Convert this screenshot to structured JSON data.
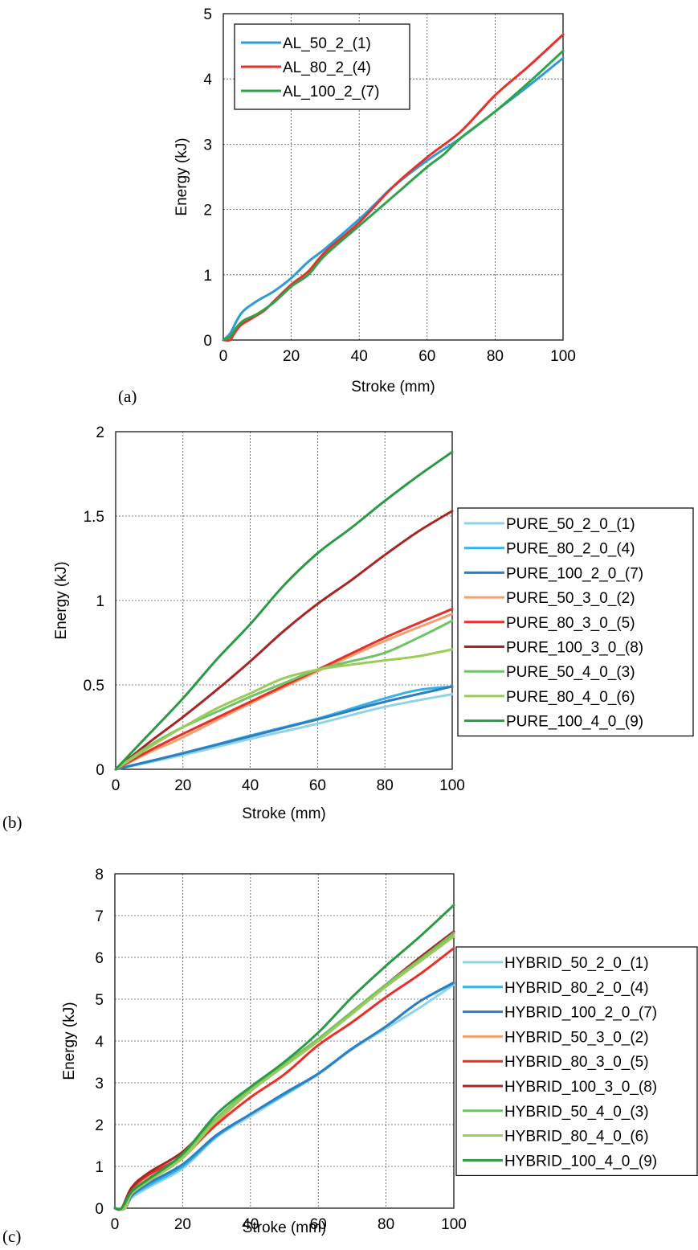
{
  "chart_data": [
    {
      "panel": "(a)",
      "type": "line",
      "xlabel": "Stroke (mm)",
      "ylabel": "Energy (kJ)",
      "xlim": [
        0,
        100
      ],
      "ylim": [
        0,
        5
      ],
      "xticks": [
        0,
        20,
        40,
        60,
        80,
        100
      ],
      "yticks": [
        0,
        1,
        2,
        3,
        4,
        5
      ],
      "grid": true,
      "legend": "inside-top-left",
      "series": [
        {
          "name": "AL_50_2_(1)",
          "color": "#2e9bd6",
          "x": [
            0,
            2,
            4,
            6,
            10,
            15,
            20,
            25,
            30,
            40,
            45,
            50,
            60,
            70,
            80,
            90,
            100
          ],
          "y": [
            0,
            0.1,
            0.3,
            0.45,
            0.6,
            0.75,
            0.95,
            1.2,
            1.4,
            1.85,
            2.1,
            2.35,
            2.75,
            3.1,
            3.5,
            3.9,
            4.32
          ]
        },
        {
          "name": "AL_80_2_(4)",
          "color": "#e8302a",
          "x": [
            0,
            2,
            3,
            5,
            8,
            12,
            15,
            20,
            25,
            30,
            40,
            50,
            60,
            70,
            80,
            90,
            100
          ],
          "y": [
            0,
            0,
            0.08,
            0.22,
            0.32,
            0.45,
            0.6,
            0.85,
            1.05,
            1.35,
            1.8,
            2.35,
            2.8,
            3.2,
            3.75,
            4.2,
            4.68
          ]
        },
        {
          "name": "AL_100_2_(7)",
          "color": "#2fa24a",
          "x": [
            0,
            2,
            4,
            6,
            10,
            15,
            20,
            25,
            30,
            40,
            50,
            60,
            65,
            70,
            80,
            90,
            100
          ],
          "y": [
            0,
            0.05,
            0.2,
            0.3,
            0.4,
            0.58,
            0.82,
            1.0,
            1.3,
            1.75,
            2.2,
            2.65,
            2.85,
            3.1,
            3.5,
            3.95,
            4.43
          ]
        }
      ]
    },
    {
      "panel": "(b)",
      "type": "line",
      "xlabel": "Stroke (mm)",
      "ylabel": "Energy (kJ)",
      "xlim": [
        0,
        100
      ],
      "ylim": [
        0,
        2
      ],
      "xticks": [
        0,
        20,
        40,
        60,
        80,
        100
      ],
      "yticks": [
        0,
        0.5,
        1,
        1.5,
        2
      ],
      "grid": true,
      "legend": "right",
      "series": [
        {
          "name": "PURE_50_2_0_(1)",
          "color": "#8fd3e8",
          "x": [
            0,
            20,
            40,
            60,
            80,
            100
          ],
          "y": [
            0,
            0.085,
            0.18,
            0.27,
            0.37,
            0.445
          ]
        },
        {
          "name": "PURE_80_2_0_(4)",
          "color": "#35b3e8",
          "x": [
            0,
            20,
            40,
            60,
            80,
            90,
            100
          ],
          "y": [
            0,
            0.095,
            0.2,
            0.3,
            0.42,
            0.47,
            0.49
          ]
        },
        {
          "name": "PURE_100_2_0_(7)",
          "color": "#2e7fc2",
          "x": [
            0,
            20,
            40,
            60,
            80,
            100
          ],
          "y": [
            0,
            0.095,
            0.195,
            0.295,
            0.4,
            0.49
          ]
        },
        {
          "name": "PURE_50_3_0_(2)",
          "color": "#f2a070",
          "x": [
            0,
            10,
            20,
            40,
            60,
            80,
            100
          ],
          "y": [
            0,
            0.1,
            0.19,
            0.39,
            0.58,
            0.76,
            0.92
          ]
        },
        {
          "name": "PURE_80_3_0_(5)",
          "color": "#e8302a",
          "x": [
            0,
            10,
            20,
            40,
            60,
            80,
            100
          ],
          "y": [
            0,
            0.11,
            0.21,
            0.4,
            0.59,
            0.78,
            0.95
          ]
        },
        {
          "name": "PURE_100_3_0_(8)",
          "color": "#a62525",
          "x": [
            0,
            10,
            20,
            30,
            40,
            50,
            60,
            70,
            80,
            90,
            100
          ],
          "y": [
            0,
            0.16,
            0.31,
            0.47,
            0.64,
            0.82,
            0.98,
            1.12,
            1.27,
            1.41,
            1.53
          ]
        },
        {
          "name": "PURE_50_4_0_(3)",
          "color": "#6fc466",
          "x": [
            0,
            10,
            20,
            30,
            40,
            50,
            60,
            70,
            80,
            90,
            100
          ],
          "y": [
            0,
            0.14,
            0.25,
            0.34,
            0.43,
            0.51,
            0.59,
            0.64,
            0.69,
            0.78,
            0.88
          ]
        },
        {
          "name": "PURE_80_4_0_(6)",
          "color": "#9ccb5a",
          "x": [
            0,
            10,
            20,
            30,
            40,
            50,
            60,
            70,
            80,
            90,
            100
          ],
          "y": [
            0,
            0.13,
            0.25,
            0.36,
            0.45,
            0.54,
            0.59,
            0.62,
            0.645,
            0.67,
            0.71
          ]
        },
        {
          "name": "PURE_100_4_0_(9)",
          "color": "#2b9a47",
          "x": [
            0,
            10,
            20,
            30,
            40,
            50,
            60,
            70,
            80,
            90,
            100
          ],
          "y": [
            0,
            0.21,
            0.42,
            0.65,
            0.86,
            1.09,
            1.28,
            1.43,
            1.59,
            1.74,
            1.88
          ]
        }
      ]
    },
    {
      "panel": "(c)",
      "type": "line",
      "xlabel": "Stroke (mm)",
      "ylabel": "Energy (kJ)",
      "xlim": [
        0,
        100
      ],
      "ylim": [
        0,
        8
      ],
      "xticks": [
        0,
        20,
        40,
        60,
        80,
        100
      ],
      "yticks": [
        0,
        1,
        2,
        3,
        4,
        5,
        6,
        7,
        8
      ],
      "grid": true,
      "legend": "right",
      "series": [
        {
          "name": "HYBRID_50_2_0_(1)",
          "color": "#8fd3e8",
          "x": [
            0,
            3,
            5,
            10,
            20,
            30,
            40,
            50,
            60,
            70,
            80,
            90,
            100
          ],
          "y": [
            0,
            0,
            0.25,
            0.5,
            0.95,
            1.7,
            2.2,
            2.7,
            3.2,
            3.8,
            4.3,
            4.8,
            5.35
          ]
        },
        {
          "name": "HYBRID_80_2_0_(4)",
          "color": "#35b3e8",
          "x": [
            0,
            3,
            5,
            10,
            20,
            30,
            40,
            50,
            60,
            70,
            80,
            90,
            100
          ],
          "y": [
            0,
            0,
            0.3,
            0.55,
            1.0,
            1.72,
            2.25,
            2.72,
            3.22,
            3.82,
            4.35,
            4.95,
            5.38
          ]
        },
        {
          "name": "HYBRID_100_2_0_(7)",
          "color": "#2e7fc2",
          "x": [
            0,
            3,
            5,
            10,
            20,
            30,
            40,
            50,
            60,
            70,
            80,
            90,
            100
          ],
          "y": [
            0,
            0,
            0.3,
            0.6,
            1.05,
            1.75,
            2.25,
            2.75,
            3.22,
            3.82,
            4.35,
            4.95,
            5.4
          ]
        },
        {
          "name": "HYBRID_50_3_0_(2)",
          "color": "#f2a070",
          "x": [
            0,
            3,
            5,
            10,
            20,
            30,
            40,
            50,
            60,
            70,
            80,
            90,
            100
          ],
          "y": [
            0,
            0,
            0.4,
            0.75,
            1.2,
            2.05,
            2.8,
            3.4,
            4.0,
            4.7,
            5.35,
            5.9,
            6.55
          ]
        },
        {
          "name": "HYBRID_80_3_0_(5)",
          "color": "#e8302a",
          "x": [
            0,
            3,
            5,
            10,
            20,
            30,
            40,
            50,
            60,
            70,
            80,
            90,
            100
          ],
          "y": [
            0,
            0,
            0.45,
            0.8,
            1.25,
            2.0,
            2.65,
            3.2,
            3.9,
            4.45,
            5.05,
            5.6,
            6.22
          ]
        },
        {
          "name": "HYBRID_100_3_0_(8)",
          "color": "#a62525",
          "x": [
            0,
            2,
            5,
            10,
            20,
            30,
            40,
            50,
            60,
            70,
            80,
            90,
            100
          ],
          "y": [
            0,
            0,
            0.5,
            0.85,
            1.35,
            2.15,
            2.85,
            3.45,
            4.05,
            4.7,
            5.35,
            6.0,
            6.62
          ]
        },
        {
          "name": "HYBRID_50_4_0_(3)",
          "color": "#6fc466",
          "x": [
            0,
            3,
            5,
            10,
            20,
            30,
            40,
            50,
            60,
            70,
            80,
            90,
            100
          ],
          "y": [
            0,
            0,
            0.4,
            0.7,
            1.25,
            2.15,
            2.85,
            3.45,
            4.05,
            4.7,
            5.35,
            5.95,
            6.58
          ]
        },
        {
          "name": "HYBRID_80_4_0_(6)",
          "color": "#9ccb5a",
          "x": [
            0,
            3,
            5,
            10,
            20,
            30,
            40,
            50,
            60,
            70,
            80,
            90,
            100
          ],
          "y": [
            0,
            0,
            0.35,
            0.65,
            1.2,
            2.1,
            2.8,
            3.4,
            4.0,
            4.65,
            5.3,
            5.9,
            6.5
          ]
        },
        {
          "name": "HYBRID_100_4_0_(9)",
          "color": "#2b9a47",
          "x": [
            0,
            2,
            5,
            10,
            20,
            30,
            40,
            50,
            60,
            70,
            80,
            90,
            100
          ],
          "y": [
            0,
            0,
            0.4,
            0.7,
            1.3,
            2.25,
            2.9,
            3.5,
            4.2,
            5.05,
            5.8,
            6.5,
            7.25
          ]
        }
      ]
    }
  ]
}
